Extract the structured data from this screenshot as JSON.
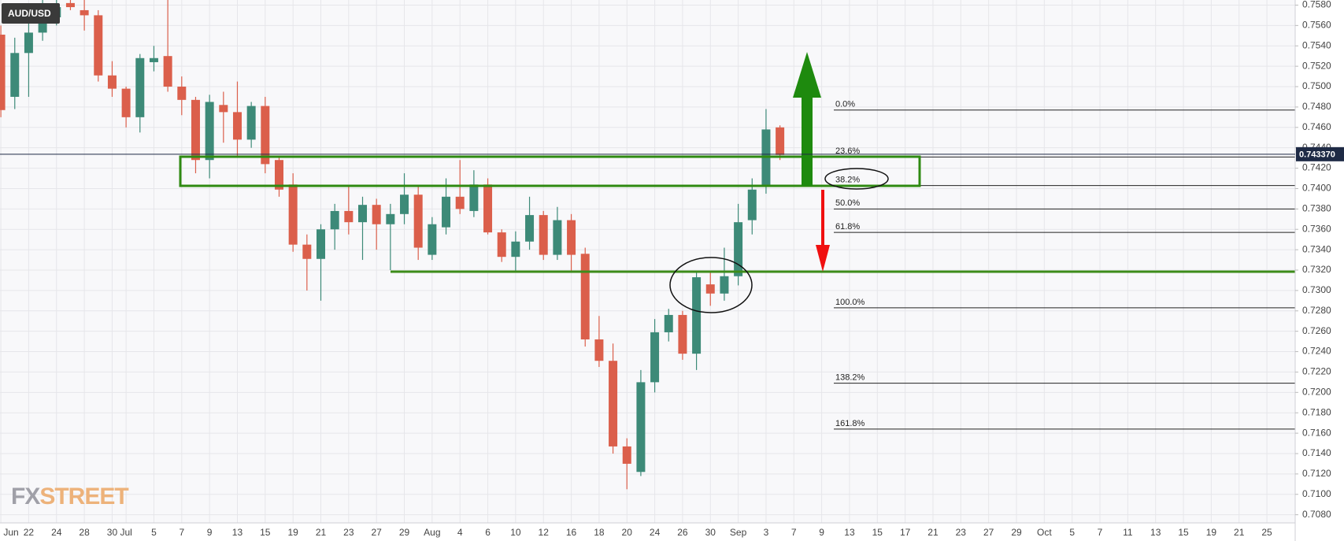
{
  "chart_data": {
    "type": "candlestick",
    "symbol": "AUD/USD",
    "logo": [
      "FX",
      "STREET"
    ],
    "up_color": "#3d8a78",
    "down_color": "#db5f4b",
    "grid": true,
    "categories": [
      "Jun",
      null,
      "22",
      null,
      "24",
      null,
      "28",
      null,
      "30",
      "Jul",
      null,
      "5",
      null,
      "7",
      null,
      "9",
      null,
      "13",
      null,
      "15",
      null,
      "19",
      null,
      "21",
      null,
      "23",
      null,
      "27",
      null,
      "29",
      null,
      "Aug",
      null,
      "4",
      null,
      "6",
      null,
      "10",
      null,
      "12",
      null,
      "16",
      null,
      "18",
      null,
      "20",
      null,
      "24",
      null,
      "26",
      null,
      "30",
      null,
      "Sep",
      null,
      "3",
      null,
      "7",
      null,
      "9",
      null,
      "13",
      null,
      "15",
      null,
      "17",
      null,
      "21",
      null,
      "23",
      null,
      "27",
      null,
      "29",
      null,
      "Oct",
      null,
      "5",
      null,
      "7",
      null,
      "11",
      null,
      "13",
      null,
      "15",
      null,
      "19",
      null,
      "21",
      null,
      "25",
      null
    ],
    "open": [
      0.7551,
      0.749,
      0.7533,
      0.7553,
      0.7568,
      0.7582,
      0.7575,
      0.757,
      0.7511,
      0.7498,
      0.747,
      0.7524,
      0.753,
      0.75,
      0.7487,
      0.7428,
      0.7482,
      0.7475,
      0.7448,
      0.7481,
      0.7428,
      0.7404,
      0.7345,
      0.7331,
      0.736,
      0.7378,
      0.7367,
      0.7384,
      0.7365,
      0.7375,
      0.7394,
      0.7335,
      0.7362,
      0.7392,
      0.7378,
      0.7404,
      0.7357,
      0.7333,
      0.7348,
      0.7374,
      0.7335,
      0.7369,
      0.7336,
      0.7252,
      0.7231,
      0.7147,
      0.7122,
      0.721,
      0.7259,
      0.7276,
      0.7238,
      0.7306,
      0.7297,
      0.7314,
      0.7369,
      0.7402,
      0.746,
      null,
      null,
      null,
      null,
      null,
      null,
      null,
      null,
      null,
      null,
      null,
      null,
      null,
      null,
      null,
      null,
      null,
      null,
      null,
      null,
      null,
      null,
      null,
      null,
      null,
      null,
      null,
      null,
      null,
      null,
      null,
      null,
      null,
      null,
      null,
      null
    ],
    "high": [
      0.756,
      0.7548,
      0.7562,
      0.7588,
      0.7588,
      0.7588,
      0.7585,
      0.7575,
      0.7525,
      0.75,
      0.7532,
      0.754,
      0.7585,
      0.751,
      0.749,
      0.7492,
      0.7495,
      0.7505,
      0.7485,
      0.749,
      0.7432,
      0.7415,
      0.7355,
      0.7365,
      0.7385,
      0.7402,
      0.7392,
      0.739,
      0.7385,
      0.7415,
      0.7402,
      0.7372,
      0.741,
      0.7428,
      0.7418,
      0.741,
      0.736,
      0.7358,
      0.7392,
      0.7378,
      0.7382,
      0.7375,
      0.7342,
      0.7275,
      0.7248,
      0.7155,
      0.7222,
      0.7272,
      0.7282,
      0.728,
      0.7318,
      0.7318,
      0.7342,
      0.7385,
      0.741,
      0.7478,
      0.7462,
      null,
      null,
      null,
      null,
      null,
      null,
      null,
      null,
      null,
      null,
      null,
      null,
      null,
      null,
      null,
      null,
      null,
      null,
      null,
      null,
      null,
      null,
      null,
      null,
      null,
      null,
      null,
      null,
      null,
      null,
      null,
      null,
      null,
      null,
      null,
      null
    ],
    "low": [
      0.747,
      0.7478,
      0.749,
      0.7545,
      0.756,
      0.7575,
      0.7555,
      0.7505,
      0.749,
      0.746,
      0.7455,
      0.7515,
      0.7495,
      0.7472,
      0.7415,
      0.741,
      0.7445,
      0.7432,
      0.744,
      0.7415,
      0.7392,
      0.7338,
      0.73,
      0.729,
      0.734,
      0.7355,
      0.733,
      0.734,
      0.732,
      0.7365,
      0.733,
      0.733,
      0.7355,
      0.7375,
      0.7372,
      0.7355,
      0.7328,
      0.7318,
      0.734,
      0.733,
      0.733,
      0.7318,
      0.7245,
      0.7225,
      0.714,
      0.7105,
      0.7118,
      0.72,
      0.725,
      0.7232,
      0.7222,
      0.7285,
      0.729,
      0.7305,
      0.7355,
      0.7395,
      0.7428,
      null,
      null,
      null,
      null,
      null,
      null,
      null,
      null,
      null,
      null,
      null,
      null,
      null,
      null,
      null,
      null,
      null,
      null,
      null,
      null,
      null,
      null,
      null,
      null,
      null,
      null,
      null,
      null,
      null,
      null,
      null,
      null,
      null,
      null,
      null,
      null
    ],
    "close": [
      0.7477,
      0.7533,
      0.7553,
      0.7568,
      0.7578,
      0.7578,
      0.757,
      0.7511,
      0.7498,
      0.747,
      0.7528,
      0.7528,
      0.75,
      0.7487,
      0.7428,
      0.7485,
      0.7475,
      0.7448,
      0.7481,
      0.7424,
      0.7399,
      0.7345,
      0.7331,
      0.736,
      0.7378,
      0.7367,
      0.7384,
      0.7365,
      0.7375,
      0.7394,
      0.7342,
      0.7365,
      0.7392,
      0.738,
      0.7404,
      0.7357,
      0.7333,
      0.7348,
      0.7374,
      0.7335,
      0.7369,
      0.7335,
      0.7252,
      0.7231,
      0.7147,
      0.713,
      0.721,
      0.7259,
      0.7276,
      0.7238,
      0.7313,
      0.7297,
      0.7314,
      0.7367,
      0.7399,
      0.7458,
      0.7433,
      null,
      null,
      null,
      null,
      null,
      null,
      null,
      null,
      null,
      null,
      null,
      null,
      null,
      null,
      null,
      null,
      null,
      null,
      null,
      null,
      null,
      null,
      null,
      null,
      null,
      null,
      null,
      null,
      null,
      null,
      null,
      null,
      null,
      null,
      null,
      null
    ],
    "ylim": [
      0.7072,
      0.7585
    ],
    "yticks": [
      {
        "value": 0.708,
        "label": "0.7080"
      },
      {
        "value": 0.71,
        "label": "0.7100"
      },
      {
        "value": 0.712,
        "label": "0.7120"
      },
      {
        "value": 0.714,
        "label": "0.7140"
      },
      {
        "value": 0.716,
        "label": "0.7160"
      },
      {
        "value": 0.718,
        "label": "0.7180"
      },
      {
        "value": 0.72,
        "label": "0.7200"
      },
      {
        "value": 0.722,
        "label": "0.7220"
      },
      {
        "value": 0.724,
        "label": "0.7240"
      },
      {
        "value": 0.726,
        "label": "0.7260"
      },
      {
        "value": 0.728,
        "label": "0.7280"
      },
      {
        "value": 0.73,
        "label": "0.7300"
      },
      {
        "value": 0.732,
        "label": "0.7320"
      },
      {
        "value": 0.734,
        "label": "0.7340"
      },
      {
        "value": 0.736,
        "label": "0.7360"
      },
      {
        "value": 0.738,
        "label": "0.7380"
      },
      {
        "value": 0.74,
        "label": "0.7400"
      },
      {
        "value": 0.742,
        "label": "0.7420"
      },
      {
        "value": 0.744,
        "label": "0.7440"
      },
      {
        "value": 0.746,
        "label": "0.7460"
      },
      {
        "value": 0.748,
        "label": "0.7480"
      },
      {
        "value": 0.75,
        "label": "0.7500"
      },
      {
        "value": 0.752,
        "label": "0.7520"
      },
      {
        "value": 0.754,
        "label": "0.7540"
      },
      {
        "value": 0.756,
        "label": "0.7560"
      },
      {
        "value": 0.758,
        "label": "0.7580"
      }
    ],
    "last_price": {
      "value": 0.74337,
      "label": "0.743370"
    },
    "last_price_color": "#1e2a45",
    "fib_levels": [
      {
        "label": "0.0%",
        "level": 0.7477
      },
      {
        "label": "23.6%",
        "level": 0.7431
      },
      {
        "label": "38.2%",
        "level": 0.7403
      },
      {
        "label": "50.0%",
        "level": 0.738
      },
      {
        "label": "61.8%",
        "level": 0.7357
      },
      {
        "label": "100.0%",
        "level": 0.7283
      },
      {
        "label": "138.2%",
        "level": 0.7209
      },
      {
        "label": "161.8%",
        "level": 0.7164
      }
    ]
  }
}
